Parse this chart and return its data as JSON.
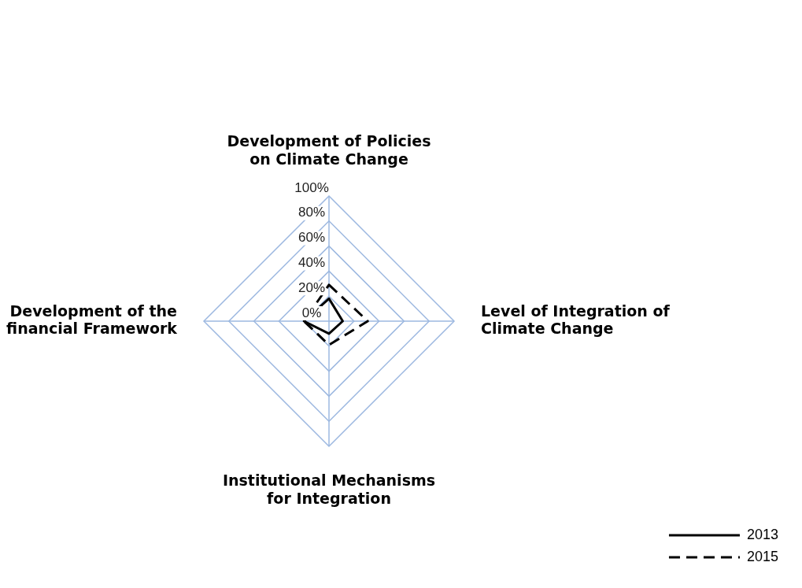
{
  "chart_data": {
    "type": "radar",
    "categories": [
      "Development of Policies on Climate Change",
      "Level of Integration of Climate Change",
      "Institutional Mechanisms for Integration",
      "Development of the financial Framework"
    ],
    "series": [
      {
        "name": "2013",
        "color": "#000000",
        "values": [
          18,
          11,
          10,
          20
        ],
        "line_style": "solid"
      },
      {
        "name": "2015",
        "color": "#000000",
        "values": [
          29,
          31,
          19,
          20
        ],
        "line_style": "dashed"
      }
    ],
    "ylim": [
      0,
      100
    ],
    "yticks": [
      {
        "value": 0,
        "label": "0%"
      },
      {
        "value": 20,
        "label": "20%"
      },
      {
        "value": 40,
        "label": "40%"
      },
      {
        "value": 60,
        "label": "60%"
      },
      {
        "value": 80,
        "label": "80%"
      },
      {
        "value": 100,
        "label": "100%"
      }
    ],
    "grid": true,
    "legend": "bottom right",
    "marker": "none"
  }
}
